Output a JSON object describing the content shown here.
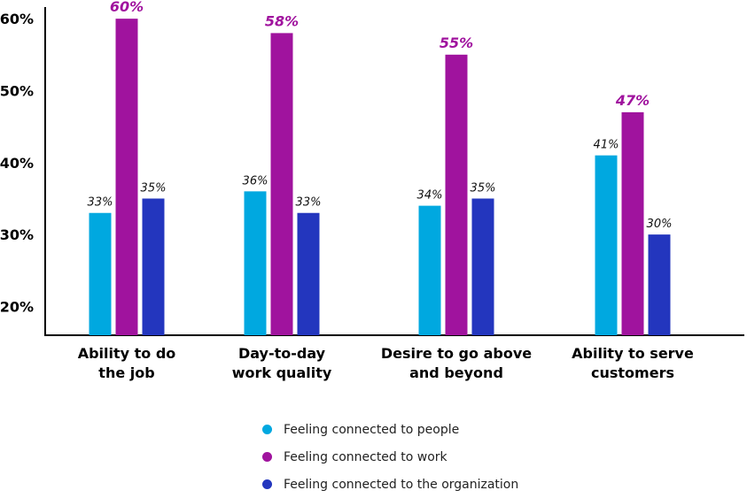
{
  "chart_data": {
    "type": "bar",
    "categories": [
      [
        "Ability to do",
        "the job"
      ],
      [
        "Day-to-day",
        "work quality"
      ],
      [
        "Desire to go above",
        "and beyond"
      ],
      [
        "Ability to serve",
        "customers"
      ]
    ],
    "series": [
      {
        "name": "Feeling connected to people",
        "color": "#00a8e0",
        "values": [
          33,
          36,
          34,
          41
        ],
        "labels": [
          "33%",
          "36%",
          "34%",
          "41%"
        ]
      },
      {
        "name": "Feeling connected to work",
        "color": "#a0139e",
        "values": [
          60,
          58,
          55,
          47
        ],
        "labels": [
          "60%",
          "58%",
          "55%",
          "47%"
        ]
      },
      {
        "name": "Feeling connected to the organization",
        "color": "#2336be",
        "values": [
          35,
          33,
          35,
          30
        ],
        "labels": [
          "35%",
          "33%",
          "35%",
          "30%"
        ]
      }
    ],
    "highlight_series": 1,
    "yticks": [
      "20%",
      "30%",
      "40%",
      "50%",
      "60%"
    ],
    "ytick_values": [
      20,
      30,
      40,
      50,
      60
    ],
    "ylim": [
      16,
      61
    ],
    "grid": false,
    "legend_position": "bottom",
    "title": "",
    "xlabel": "",
    "ylabel": ""
  }
}
